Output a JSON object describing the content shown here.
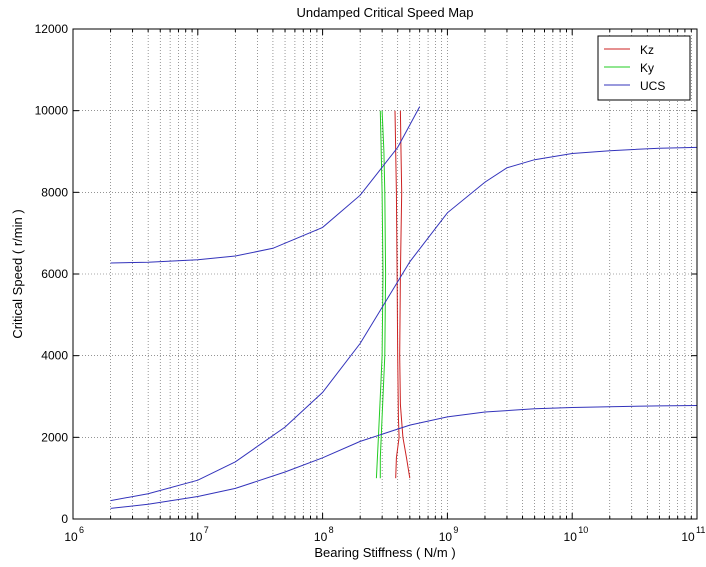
{
  "chart_data": {
    "type": "line",
    "title": "Undamped Critical Speed Map",
    "xlabel": "Bearing Stiffness ( N/m )",
    "ylabel": "Critical Speed ( r/min )",
    "x_scale": "log",
    "xlim": [
      1000000,
      100000000000
    ],
    "ylim": [
      0,
      12000
    ],
    "x_ticks": [
      {
        "value": 1000000,
        "base": "10",
        "exp": "6"
      },
      {
        "value": 10000000,
        "base": "10",
        "exp": "7"
      },
      {
        "value": 100000000,
        "base": "10",
        "exp": "8"
      },
      {
        "value": 1000000000,
        "base": "10",
        "exp": "9"
      },
      {
        "value": 10000000000,
        "base": "10",
        "exp": "10"
      },
      {
        "value": 100000000000,
        "base": "10",
        "exp": "11"
      }
    ],
    "y_ticks": [
      {
        "value": 0,
        "label": "0"
      },
      {
        "value": 2000,
        "label": "2000"
      },
      {
        "value": 4000,
        "label": "4000"
      },
      {
        "value": 6000,
        "label": "6000"
      },
      {
        "value": 8000,
        "label": "8000"
      },
      {
        "value": 10000,
        "label": "10000"
      },
      {
        "value": 12000,
        "label": "12000"
      }
    ],
    "grid": true,
    "legend": "top-right",
    "series": [
      {
        "name": "Kz",
        "color": "#cc2222",
        "lines": [
          {
            "x": [
              380000000,
              385000000,
              390000000,
              395000000,
              400000000,
              405000000,
              410000000,
              390000000,
              385000000
            ],
            "y": [
              10000,
              9000,
              8000,
              6000,
              4000,
              2500,
              2000,
              1500,
              1000
            ]
          },
          {
            "x": [
              420000000,
              425000000,
              430000000,
              420000000,
              415000000,
              420000000,
              440000000,
              470000000,
              500000000
            ],
            "y": [
              10000,
              9000,
              8000,
              6000,
              4000,
              2800,
              2000,
              1500,
              1000
            ]
          }
        ]
      },
      {
        "name": "Ky",
        "color": "#22cc22",
        "lines": [
          {
            "x": [
              290000000,
              295000000,
              300000000,
              305000000,
              300000000,
              290000000,
              280000000,
              275000000,
              270000000
            ],
            "y": [
              10000,
              9000,
              8000,
              6000,
              4000,
              3000,
              2000,
              1500,
              1000
            ]
          },
          {
            "x": [
              300000000,
              310000000,
              315000000,
              320000000,
              315000000,
              305000000,
              295000000,
              290000000,
              290000000
            ],
            "y": [
              10000,
              9000,
              8000,
              6000,
              4000,
              3000,
              2000,
              1500,
              1000
            ]
          }
        ]
      },
      {
        "name": "UCS",
        "color": "#3333bb",
        "lines": [
          {
            "x": [
              2000000,
              4000000,
              10000000,
              20000000,
              40000000,
              100000000,
              200000000,
              400000000,
              600000000
            ],
            "y": [
              6270,
              6290,
              6350,
              6440,
              6630,
              7140,
              7930,
              9100,
              10100
            ]
          },
          {
            "x": [
              2000000,
              4000000,
              10000000,
              20000000,
              50000000,
              100000000,
              200000000,
              500000000,
              1000000000,
              2000000000,
              3000000000,
              5000000000,
              10000000000,
              20000000000,
              50000000000,
              100000000000
            ],
            "y": [
              450,
              620,
              950,
              1400,
              2250,
              3100,
              4300,
              6300,
              7500,
              8250,
              8600,
              8800,
              8950,
              9020,
              9080,
              9100
            ]
          },
          {
            "x": [
              2000000,
              4000000,
              10000000,
              20000000,
              50000000,
              100000000,
              200000000,
              500000000,
              1000000000,
              2000000000,
              5000000000,
              10000000000,
              20000000000,
              50000000000,
              100000000000
            ],
            "y": [
              260,
              360,
              550,
              750,
              1150,
              1500,
              1900,
              2300,
              2500,
              2620,
              2700,
              2730,
              2750,
              2770,
              2780
            ]
          }
        ]
      }
    ]
  }
}
